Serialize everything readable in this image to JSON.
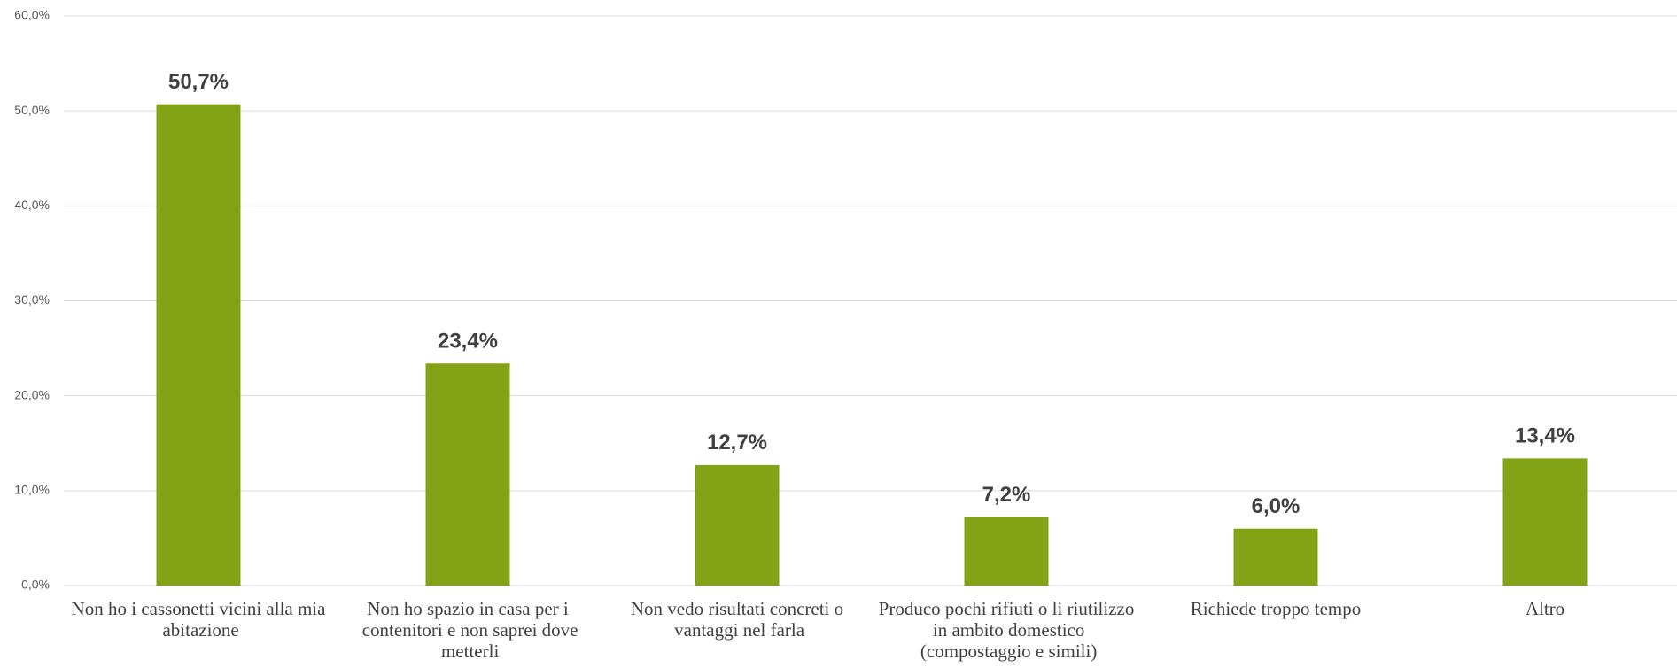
{
  "chart_data": {
    "type": "bar",
    "categories": [
      "Non ho i cassonetti vicini alla mia abitazione",
      "Non ho spazio in casa per i contenitori e non saprei dove metterli",
      "Non vedo risultati concreti o vantaggi nel farla",
      "Produco pochi rifiuti o li riutilizzo in ambito domestico (compostaggio e simili)",
      "Richiede troppo tempo",
      "Altro"
    ],
    "values": [
      50.7,
      23.4,
      12.7,
      7.2,
      6.0,
      13.4
    ],
    "value_labels": [
      "50,7%",
      "23,4%",
      "12,7%",
      "7,2%",
      "6,0%",
      "13,4%"
    ],
    "color": "#84a216",
    "ylim": [
      0,
      60
    ],
    "yticks": [
      {
        "value": 0,
        "label": "0,0%"
      },
      {
        "value": 10,
        "label": "10,0%"
      },
      {
        "value": 20,
        "label": "20,0%"
      },
      {
        "value": 30,
        "label": "30,0%"
      },
      {
        "value": 40,
        "label": "40,0%"
      },
      {
        "value": 50,
        "label": "50,0%"
      },
      {
        "value": 60,
        "label": "60,0%"
      }
    ],
    "grid": true
  }
}
